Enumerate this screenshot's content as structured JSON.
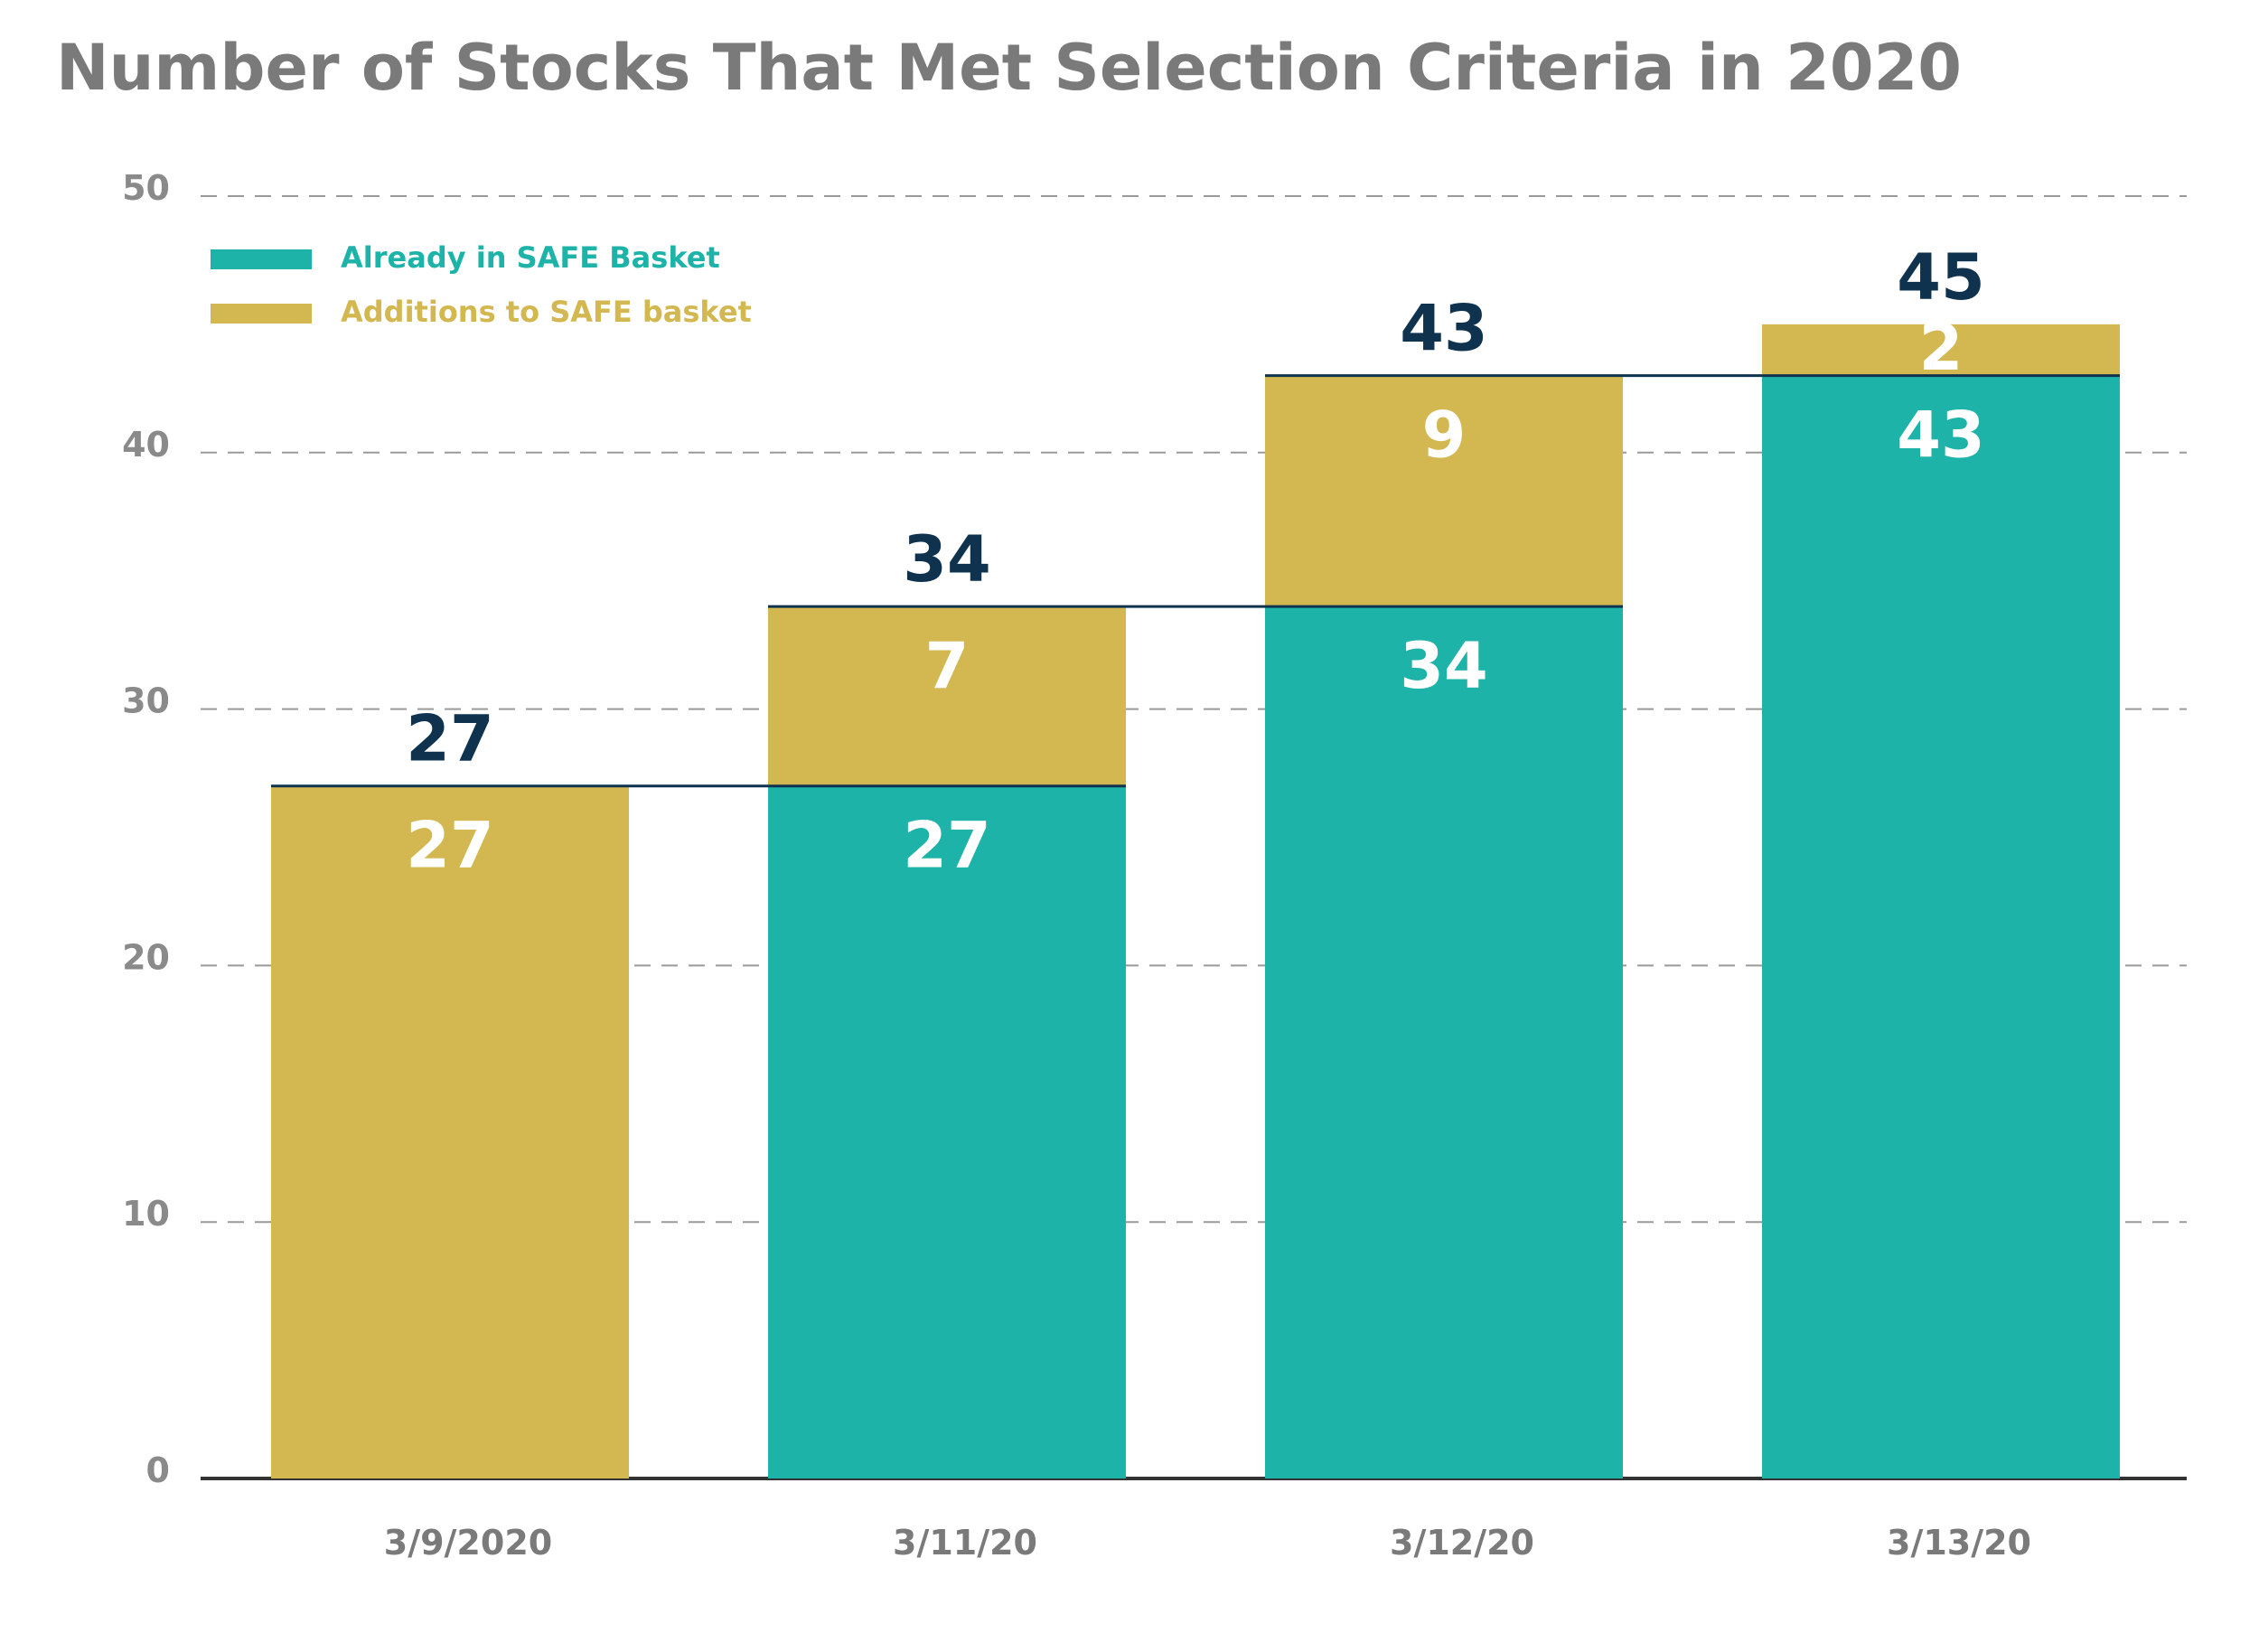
{
  "chart_data": {
    "type": "bar",
    "stacked": true,
    "title": "Number of Stocks That Met Selection Criteria in 2020",
    "categories": [
      "3/9/2020",
      "3/11/20",
      "3/12/20",
      "3/13/20"
    ],
    "series": [
      {
        "name": "Already in SAFE Basket",
        "color": "#1eb3a8",
        "values": [
          0,
          27,
          34,
          43
        ]
      },
      {
        "name": "Additions to SAFE basket",
        "color": "#d3b852",
        "values": [
          27,
          7,
          9,
          2
        ]
      }
    ],
    "totals": [
      27,
      34,
      43,
      45
    ],
    "segment_labels": {
      "Already in SAFE Basket": [
        "",
        "27",
        "34",
        "43"
      ],
      "Additions to SAFE basket": [
        "27",
        "7",
        "9",
        "2"
      ]
    },
    "total_labels": [
      "27",
      "34",
      "43",
      "45"
    ],
    "ylim": [
      0,
      50
    ],
    "yticks": [
      0,
      10,
      20,
      30,
      40,
      50
    ],
    "grid": true,
    "legend_position": "top-left",
    "total_label_color": "#0f334f",
    "connector_color": "#0f334f"
  }
}
